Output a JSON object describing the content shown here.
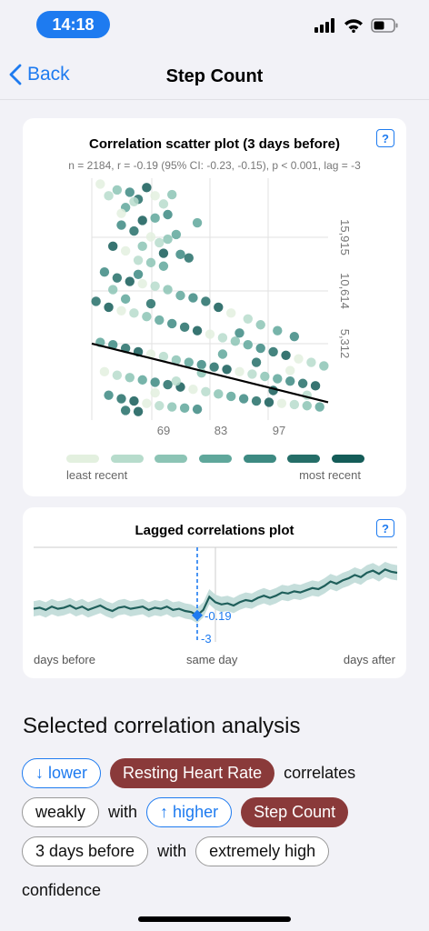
{
  "status_bar": {
    "time": "14:18"
  },
  "nav": {
    "back_label": "Back",
    "title": "Step Count"
  },
  "scatter_card": {
    "title": "Correlation scatter plot (3 days before)",
    "stats": "n = 2184, r = -0.19 (95% CI: -0.23, -0.15), p < 0.001, lag = -3",
    "legend": {
      "least_label": "least recent",
      "most_label": "most recent",
      "colors": [
        "#e3f0df",
        "#b7dccc",
        "#8cc4b5",
        "#5fa79b",
        "#3d8a82",
        "#256e68",
        "#145c58"
      ]
    }
  },
  "lag_card": {
    "title": "Lagged correlations plot",
    "selected_value": "-0.19",
    "selected_lag": "-3",
    "left_label": "days before",
    "center_label": "same day",
    "right_label": "days after"
  },
  "analysis": {
    "title": "Selected correlation analysis",
    "pill_lower": "↓ lower",
    "var_resting_hr": "Resting Heart Rate",
    "word_correlates": "correlates",
    "pill_weakly": "weakly",
    "word_with_1": "with",
    "pill_higher": "↑ higher",
    "var_step_count": "Step Count",
    "pill_days_before": "3 days before",
    "word_with_2": "with",
    "pill_confidence": "extremely high",
    "word_confidence": "confidence"
  },
  "chart_data": [
    {
      "type": "scatter",
      "title": "Correlation scatter plot (3 days before)",
      "x_ticks": [
        "69",
        "83",
        "97"
      ],
      "y_ticks": [
        "15,915",
        "10,614",
        "5,312"
      ],
      "n": 2184,
      "r": -0.19,
      "trend_line": {
        "x": [
          55,
          111
        ],
        "y": [
          5900,
          900
        ]
      },
      "xlim": [
        55,
        111
      ],
      "ylim": [
        0,
        20000
      ],
      "series": [
        {
          "points": [
            [
              57,
              19500
            ],
            [
              59,
              18500
            ],
            [
              61,
              19000
            ],
            [
              63,
              17500
            ],
            [
              64,
              18800
            ],
            [
              66,
              18200
            ],
            [
              68,
              19200
            ],
            [
              70,
              18500
            ],
            [
              72,
              17800
            ],
            [
              74,
              18600
            ],
            [
              80,
              16200
            ],
            [
              62,
              16000
            ],
            [
              65,
              15500
            ],
            [
              67,
              16400
            ],
            [
              69,
              15000
            ],
            [
              71,
              14500
            ],
            [
              73,
              14800
            ],
            [
              75,
              15200
            ],
            [
              76,
              13500
            ],
            [
              78,
              13200
            ],
            [
              60,
              14200
            ],
            [
              63,
              13800
            ],
            [
              66,
              13000
            ],
            [
              69,
              12800
            ],
            [
              72,
              12500
            ],
            [
              58,
              12000
            ],
            [
              61,
              11500
            ],
            [
              64,
              11200
            ],
            [
              67,
              11000
            ],
            [
              70,
              10800
            ],
            [
              73,
              10500
            ],
            [
              76,
              10000
            ],
            [
              79,
              9800
            ],
            [
              82,
              9500
            ],
            [
              85,
              9000
            ],
            [
              88,
              8500
            ],
            [
              92,
              8000
            ],
            [
              95,
              7500
            ],
            [
              99,
              7000
            ],
            [
              103,
              6500
            ],
            [
              56,
              9500
            ],
            [
              59,
              9000
            ],
            [
              62,
              8700
            ],
            [
              65,
              8500
            ],
            [
              68,
              8200
            ],
            [
              71,
              7900
            ],
            [
              74,
              7600
            ],
            [
              77,
              7300
            ],
            [
              80,
              7000
            ],
            [
              83,
              6700
            ],
            [
              86,
              6400
            ],
            [
              89,
              6100
            ],
            [
              92,
              5800
            ],
            [
              95,
              5500
            ],
            [
              98,
              5200
            ],
            [
              101,
              4900
            ],
            [
              104,
              4600
            ],
            [
              107,
              4300
            ],
            [
              110,
              4000
            ],
            [
              57,
              6000
            ],
            [
              60,
              5800
            ],
            [
              63,
              5500
            ],
            [
              66,
              5200
            ],
            [
              69,
              5000
            ],
            [
              72,
              4800
            ],
            [
              75,
              4500
            ],
            [
              78,
              4300
            ],
            [
              81,
              4100
            ],
            [
              84,
              3900
            ],
            [
              87,
              3700
            ],
            [
              90,
              3500
            ],
            [
              93,
              3300
            ],
            [
              96,
              3100
            ],
            [
              99,
              2900
            ],
            [
              102,
              2700
            ],
            [
              105,
              2500
            ],
            [
              108,
              2300
            ],
            [
              58,
              3500
            ],
            [
              61,
              3200
            ],
            [
              64,
              3000
            ],
            [
              67,
              2800
            ],
            [
              70,
              2600
            ],
            [
              73,
              2400
            ],
            [
              76,
              2200
            ],
            [
              79,
              2000
            ],
            [
              82,
              1800
            ],
            [
              85,
              1600
            ],
            [
              88,
              1400
            ],
            [
              91,
              1200
            ],
            [
              94,
              1000
            ],
            [
              97,
              900
            ],
            [
              100,
              800
            ],
            [
              103,
              700
            ],
            [
              106,
              600
            ],
            [
              109,
              500
            ],
            [
              59,
              1500
            ],
            [
              62,
              1200
            ],
            [
              65,
              1000
            ],
            [
              68,
              800
            ],
            [
              71,
              600
            ],
            [
              74,
              500
            ],
            [
              77,
              400
            ],
            [
              80,
              300
            ],
            [
              63,
              200
            ],
            [
              66,
              100
            ],
            [
              70,
              1700
            ],
            [
              75,
              2700
            ],
            [
              81,
              3400
            ],
            [
              86,
              5000
            ],
            [
              90,
              6800
            ],
            [
              94,
              4300
            ],
            [
              98,
              1900
            ],
            [
              102,
              3600
            ],
            [
              106,
              1500
            ],
            [
              60,
              10500
            ],
            [
              63,
              9700
            ],
            [
              66,
              11800
            ],
            [
              69,
              9300
            ],
            [
              72,
              13600
            ],
            [
              62,
              17000
            ],
            [
              65,
              18000
            ],
            [
              67,
              14200
            ],
            [
              70,
              16600
            ],
            [
              73,
              16900
            ]
          ]
        }
      ]
    },
    {
      "type": "line",
      "title": "Lagged correlations plot",
      "x_ticks": [
        "days before",
        "same day",
        "days after"
      ],
      "selected": {
        "lag": -3,
        "r": -0.19
      },
      "ylim": [
        -1,
        1
      ],
      "series": [
        {
          "name": "",
          "x": [
            -30,
            -29,
            -28,
            -27,
            -26,
            -25,
            -24,
            -23,
            -22,
            -21,
            -20,
            -19,
            -18,
            -17,
            -16,
            -15,
            -14,
            -13,
            -12,
            -11,
            -10,
            -9,
            -8,
            -7,
            -6,
            -5,
            -4,
            -3,
            -2,
            -1,
            0,
            1,
            2,
            3,
            4,
            5,
            6,
            7,
            8,
            9,
            10,
            11,
            12,
            13,
            14,
            15,
            16,
            17,
            18,
            19,
            20,
            21,
            22,
            23,
            24,
            25,
            26,
            27,
            28,
            29,
            30
          ],
          "y": [
            -0.13,
            -0.12,
            -0.14,
            -0.11,
            -0.13,
            -0.12,
            -0.1,
            -0.13,
            -0.11,
            -0.14,
            -0.12,
            -0.1,
            -0.13,
            -0.15,
            -0.12,
            -0.11,
            -0.13,
            -0.12,
            -0.11,
            -0.14,
            -0.12,
            -0.13,
            -0.11,
            -0.14,
            -0.13,
            -0.15,
            -0.16,
            -0.19,
            -0.14,
            -0.02,
            -0.07,
            -0.09,
            -0.08,
            -0.1,
            -0.07,
            -0.05,
            -0.06,
            -0.03,
            -0.01,
            -0.03,
            -0.01,
            0.02,
            0.01,
            0.03,
            0.02,
            0.04,
            0.06,
            0.05,
            0.08,
            0.12,
            0.1,
            0.13,
            0.15,
            0.18,
            0.16,
            0.2,
            0.22,
            0.19,
            0.23,
            0.21,
            0.2
          ],
          "band": 0.07
        }
      ]
    }
  ]
}
